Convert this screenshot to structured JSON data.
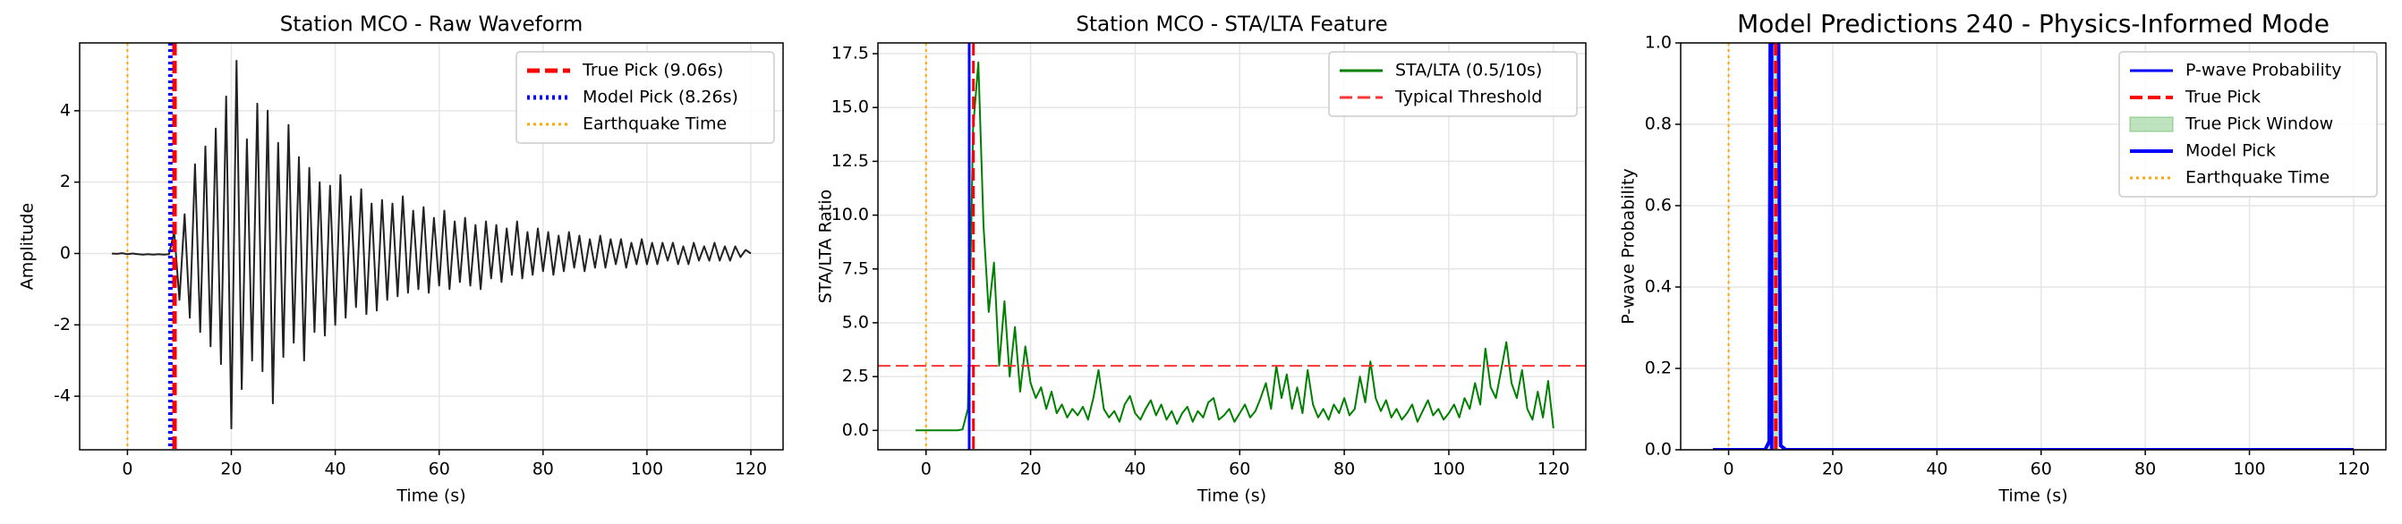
{
  "chart_data": [
    {
      "type": "line",
      "title": "Station MCO - Raw Waveform",
      "x_label": "Time (s)",
      "y_label": "Amplitude",
      "xlim": [
        -9.2,
        126.2
      ],
      "ylim": [
        -5.5,
        5.9
      ],
      "xticks": [
        0,
        20,
        40,
        60,
        80,
        100,
        120
      ],
      "yticks": [
        -4,
        -2,
        0,
        2,
        4
      ],
      "grid": true,
      "legend": "upper right",
      "series": [
        {
          "color": "#222222",
          "x": [
            -3,
            -2,
            -1,
            0,
            1,
            2,
            3,
            4,
            5,
            6,
            7,
            8,
            9,
            10,
            11,
            12,
            13,
            14,
            15,
            16,
            17,
            18,
            19,
            20,
            21,
            22,
            23,
            24,
            25,
            26,
            27,
            28,
            29,
            30,
            31,
            32,
            33,
            34,
            35,
            36,
            37,
            38,
            39,
            40,
            41,
            42,
            43,
            44,
            45,
            46,
            47,
            48,
            49,
            50,
            51,
            52,
            53,
            54,
            55,
            56,
            57,
            58,
            59,
            60,
            61,
            62,
            63,
            64,
            65,
            66,
            67,
            68,
            69,
            70,
            71,
            72,
            73,
            74,
            75,
            76,
            77,
            78,
            79,
            80,
            81,
            82,
            83,
            84,
            85,
            86,
            87,
            88,
            89,
            90,
            91,
            92,
            93,
            94,
            95,
            96,
            97,
            98,
            99,
            100,
            101,
            102,
            103,
            104,
            105,
            106,
            107,
            108,
            109,
            110,
            111,
            112,
            113,
            114,
            115,
            116,
            117,
            118,
            119,
            120
          ],
          "values": [
            0.0,
            -0.01,
            0.01,
            -0.02,
            0.0,
            -0.02,
            -0.03,
            -0.02,
            -0.03,
            -0.02,
            -0.03,
            -0.02,
            0.6,
            -1.3,
            1.1,
            -1.8,
            2.5,
            -2.2,
            3.0,
            -2.6,
            3.5,
            -3.1,
            4.4,
            -4.9,
            5.4,
            -3.8,
            3.2,
            -3.0,
            4.2,
            -3.3,
            4.0,
            -4.2,
            3.1,
            -2.9,
            3.6,
            -2.5,
            2.7,
            -3.0,
            2.4,
            -2.2,
            2.0,
            -2.3,
            1.9,
            -2.0,
            2.2,
            -1.8,
            1.6,
            -1.5,
            1.8,
            -1.7,
            1.4,
            -1.6,
            1.5,
            -1.3,
            1.4,
            -1.2,
            1.6,
            -1.1,
            1.2,
            -1.0,
            1.3,
            -1.1,
            1.0,
            -0.9,
            1.2,
            -1.0,
            0.9,
            -0.8,
            1.0,
            -0.9,
            0.8,
            -1.0,
            0.9,
            -0.7,
            0.8,
            -0.8,
            0.7,
            -0.6,
            0.9,
            -0.7,
            0.6,
            -0.6,
            0.7,
            -0.5,
            0.6,
            -0.6,
            0.5,
            -0.5,
            0.6,
            -0.4,
            0.5,
            -0.5,
            0.4,
            -0.4,
            0.5,
            -0.4,
            0.4,
            -0.3,
            0.4,
            -0.4,
            0.3,
            -0.3,
            0.4,
            -0.3,
            0.3,
            -0.3,
            0.3,
            -0.2,
            0.3,
            -0.3,
            0.2,
            -0.3,
            0.3,
            -0.2,
            0.2,
            -0.2,
            0.3,
            -0.2,
            0.2,
            -0.2,
            0.2,
            -0.1,
            0.1,
            0.0
          ]
        }
      ],
      "overlays": [
        {
          "kind": "vline",
          "name": "True Pick (9.06s)",
          "x": 9.06,
          "color": "#ff0000",
          "style": "dashed",
          "linewidth": 5
        },
        {
          "kind": "vline",
          "name": "Model Pick (8.26s)",
          "x": 8.26,
          "color": "#0000ff",
          "style": "dotted",
          "linewidth": 5
        },
        {
          "kind": "vline",
          "name": "Earthquake Time",
          "x": 0,
          "color": "#ffa500",
          "style": "dotted",
          "linewidth": 2
        }
      ]
    },
    {
      "type": "line",
      "title": "Station MCO - STA/LTA Feature",
      "x_label": "Time (s)",
      "y_label": "STA/LTA Ratio",
      "xlim": [
        -9.2,
        126.2
      ],
      "ylim": [
        -0.9,
        18.0
      ],
      "xticks": [
        0,
        20,
        40,
        60,
        80,
        100,
        120
      ],
      "yticks": [
        {
          "value": 0,
          "label": "0.0"
        },
        2.5,
        {
          "value": 5,
          "label": "5.0"
        },
        7.5,
        {
          "value": 10,
          "label": "10.0"
        },
        12.5,
        {
          "value": 15,
          "label": "15.0"
        },
        17.5
      ],
      "grid": true,
      "legend": "upper right",
      "series": [
        {
          "name": "STA/LTA (0.5/10s)",
          "color": "#008000",
          "x": [
            -2,
            -1,
            0,
            1,
            2,
            3,
            4,
            5,
            6,
            7,
            8,
            9,
            10,
            11,
            12,
            13,
            14,
            15,
            16,
            17,
            18,
            19,
            20,
            21,
            22,
            23,
            24,
            25,
            26,
            27,
            28,
            29,
            30,
            31,
            32,
            33,
            34,
            35,
            36,
            37,
            38,
            39,
            40,
            41,
            42,
            43,
            44,
            45,
            46,
            47,
            48,
            49,
            50,
            51,
            52,
            53,
            54,
            55,
            56,
            57,
            58,
            59,
            60,
            61,
            62,
            63,
            64,
            65,
            66,
            67,
            68,
            69,
            70,
            71,
            72,
            73,
            74,
            75,
            76,
            77,
            78,
            79,
            80,
            81,
            82,
            83,
            84,
            85,
            86,
            87,
            88,
            89,
            90,
            91,
            92,
            93,
            94,
            95,
            96,
            97,
            98,
            99,
            100,
            101,
            102,
            103,
            104,
            105,
            106,
            107,
            108,
            109,
            110,
            111,
            112,
            113,
            114,
            115,
            116,
            117,
            118,
            119,
            120
          ],
          "values": [
            0,
            0,
            0,
            0,
            0,
            0,
            0,
            0,
            0,
            0.05,
            1.0,
            14.0,
            17.1,
            9.5,
            5.5,
            7.8,
            3.0,
            6.0,
            2.5,
            4.8,
            1.8,
            3.9,
            2.2,
            1.5,
            2.0,
            1.0,
            1.8,
            0.8,
            1.2,
            0.6,
            1.0,
            0.7,
            1.1,
            0.5,
            1.5,
            2.8,
            1.0,
            0.6,
            0.9,
            0.4,
            1.2,
            1.6,
            0.8,
            0.5,
            1.0,
            1.4,
            0.7,
            1.2,
            0.5,
            0.9,
            0.3,
            0.8,
            1.1,
            0.4,
            0.9,
            0.6,
            1.3,
            1.5,
            0.5,
            0.7,
            1.0,
            0.4,
            0.8,
            1.2,
            0.6,
            0.9,
            1.5,
            2.2,
            1.0,
            3.0,
            1.5,
            2.6,
            1.0,
            2.0,
            0.8,
            2.8,
            1.2,
            0.6,
            1.0,
            0.5,
            1.2,
            0.8,
            1.5,
            0.7,
            1.0,
            2.5,
            1.3,
            3.2,
            1.5,
            0.9,
            1.4,
            0.6,
            1.0,
            0.5,
            0.8,
            1.2,
            0.4,
            0.9,
            1.4,
            0.7,
            1.0,
            0.5,
            0.8,
            1.2,
            0.6,
            1.5,
            1.0,
            2.2,
            1.2,
            3.8,
            2.0,
            1.5,
            2.8,
            4.1,
            2.2,
            1.5,
            2.8,
            1.0,
            0.5,
            1.8,
            0.6,
            2.3,
            0.1
          ]
        }
      ],
      "overlays": [
        {
          "kind": "hline",
          "name": "Typical Threshold",
          "y": 3,
          "color": "#ff3333",
          "style": "dashed",
          "linewidth": 2
        },
        {
          "kind": "vline",
          "x": 8.26,
          "color": "#0000ff",
          "style": "solid",
          "linewidth": 3
        },
        {
          "kind": "vline",
          "x": 9.06,
          "color": "#ff0000",
          "style": "dashed",
          "linewidth": 3
        },
        {
          "kind": "vline",
          "x": 0,
          "color": "#ffa500",
          "style": "dotted",
          "linewidth": 2
        }
      ]
    },
    {
      "type": "line",
      "title": "Model Predictions 240 - Physics-Informed Mode",
      "x_label": "Time (s)",
      "y_label": "P-wave Probability",
      "xlim": [
        -9.2,
        126.2
      ],
      "ylim": [
        0,
        1
      ],
      "xticks": [
        0,
        20,
        40,
        60,
        80,
        100,
        120
      ],
      "yticks": [
        {
          "value": 0,
          "label": "0.0"
        },
        0.2,
        0.4,
        0.6,
        0.8,
        {
          "value": 1,
          "label": "1.0"
        }
      ],
      "grid": true,
      "legend": "upper right",
      "series": [
        {
          "name": "P-wave Probability",
          "color": "#0000ff",
          "x": [
            -3,
            0,
            7,
            7.8,
            8,
            9,
            9.6,
            10,
            11,
            20,
            40,
            60,
            80,
            100,
            120
          ],
          "values": [
            0,
            0,
            0,
            0.02,
            1,
            1,
            1,
            0.01,
            0,
            0,
            0,
            0,
            0,
            0,
            0
          ]
        }
      ],
      "overlays": [
        {
          "kind": "vline",
          "name": "True Pick",
          "x": 9.06,
          "color": "#ff0000",
          "style": "dashed",
          "linewidth": 4
        },
        {
          "kind": "span",
          "name": "True Pick Window",
          "x": [
            8.56,
            9.56
          ],
          "color": "#2ca02c"
        },
        {
          "kind": "vline",
          "name": "Model Pick",
          "x": 8.26,
          "color": "#0000ff",
          "style": "solid",
          "linewidth": 4
        },
        {
          "kind": "vline",
          "name": "Earthquake Time",
          "x": 0,
          "color": "#ffa500",
          "style": "dotted",
          "linewidth": 2
        }
      ]
    }
  ]
}
